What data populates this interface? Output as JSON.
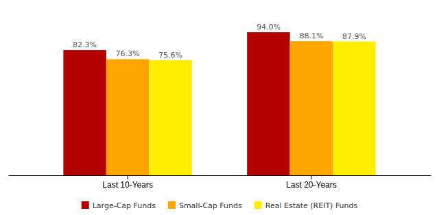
{
  "chart_data": {
    "type": "bar",
    "categories": [
      "Last 10-Years",
      "Last 20-Years"
    ],
    "series": [
      {
        "name": "Large-Cap Funds",
        "color": "#B30000",
        "values": [
          82.3,
          94.0
        ],
        "value_labels": [
          "82.3%",
          "94.0%"
        ]
      },
      {
        "name": "Small-Cap Funds",
        "color": "#FFA500",
        "values": [
          76.3,
          88.1
        ],
        "value_labels": [
          "76.3%",
          "88.1%"
        ]
      },
      {
        "name": "Real Estate (REIT) Funds",
        "color": "#FFEE00",
        "values": [
          75.6,
          87.9
        ],
        "value_labels": [
          "75.6%",
          "87.9%"
        ]
      }
    ],
    "ylim": [
      0,
      108
    ],
    "grid": false,
    "legend": "bottom",
    "data_labels": true,
    "tick_labels": "x"
  }
}
